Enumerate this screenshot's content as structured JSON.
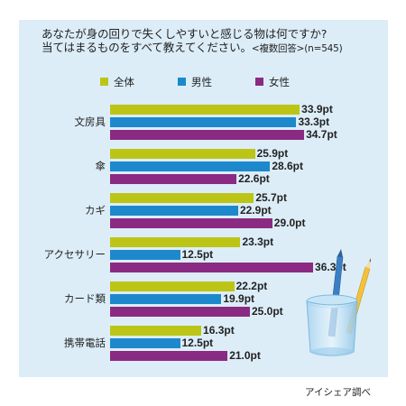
{
  "question": {
    "line1": "あなたが身の回りで失くしやすいと感じる物は何ですか?",
    "line2": "当てはまるものをすべて教えてください。",
    "note": "<複数回答>(n=545)"
  },
  "source": "アイシェア調べ",
  "colors": {
    "panel": "#dcedf8",
    "all": "#bcc516",
    "male": "#1e88cc",
    "female": "#8a2a82"
  },
  "chart_data": {
    "type": "bar",
    "orientation": "horizontal",
    "unit": "pt",
    "categories": [
      "文房具",
      "傘",
      "カギ",
      "アクセサリー",
      "カード類",
      "携帯電話"
    ],
    "series": [
      {
        "name": "全体",
        "values": [
          33.9,
          25.9,
          25.7,
          23.3,
          22.2,
          16.3
        ]
      },
      {
        "name": "男性",
        "values": [
          33.3,
          28.6,
          22.9,
          12.5,
          19.9,
          12.5
        ]
      },
      {
        "name": "女性",
        "values": [
          34.7,
          22.6,
          29.0,
          36.3,
          25.0,
          21.0
        ]
      }
    ],
    "value_labels": [
      [
        "33.9pt",
        "25.9pt",
        "25.7pt",
        "23.3pt",
        "22.2pt",
        "16.3pt"
      ],
      [
        "33.3pt",
        "28.6pt",
        "22.9pt",
        "12.5pt",
        "19.9pt",
        "12.5pt"
      ],
      [
        "34.7pt",
        "22.6pt",
        "29.0pt",
        "36.3pt",
        "25.0pt",
        "21.0pt"
      ]
    ],
    "legend_position": "top-left",
    "grid": false,
    "xaxis_visible": false
  }
}
